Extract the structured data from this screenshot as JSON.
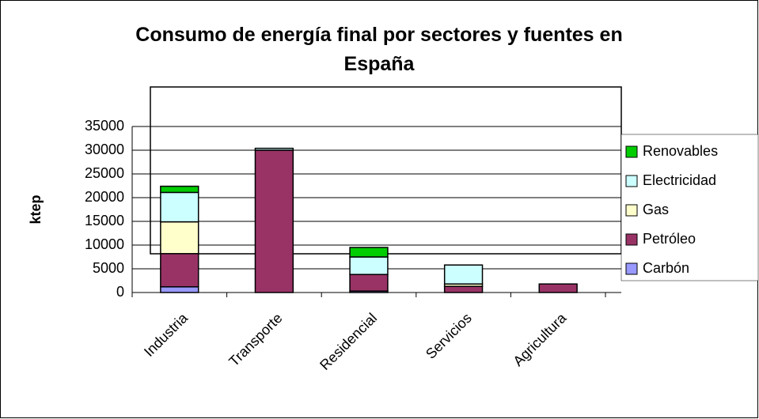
{
  "chart_data": {
    "type": "stacked-bar",
    "title": "Consumo de energía final por sectores y fuentes en España",
    "y_label": "ktep",
    "categories": [
      "Industria",
      "Transporte",
      "Residencial",
      "Servicios",
      "Agricultura"
    ],
    "series": [
      {
        "name": "Carbón",
        "color": "#9999ff",
        "values": [
          1200,
          0,
          300,
          0,
          0
        ]
      },
      {
        "name": "Petróleo",
        "color": "#993366",
        "values": [
          7000,
          30000,
          3500,
          1300,
          1800
        ]
      },
      {
        "name": "Gas",
        "color": "#ffffcc",
        "values": [
          6700,
          0,
          0,
          500,
          0
        ]
      },
      {
        "name": "Electricidad",
        "color": "#ccffff",
        "values": [
          6200,
          400,
          3700,
          4000,
          0
        ]
      },
      {
        "name": "Renovables",
        "color": "#00cc00",
        "values": [
          1300,
          0,
          2000,
          0,
          0
        ]
      }
    ],
    "ylim": [
      0,
      35000
    ],
    "yticks": [
      0,
      5000,
      10000,
      15000,
      20000,
      25000,
      30000,
      35000
    ],
    "grid": true,
    "legend": "right"
  }
}
